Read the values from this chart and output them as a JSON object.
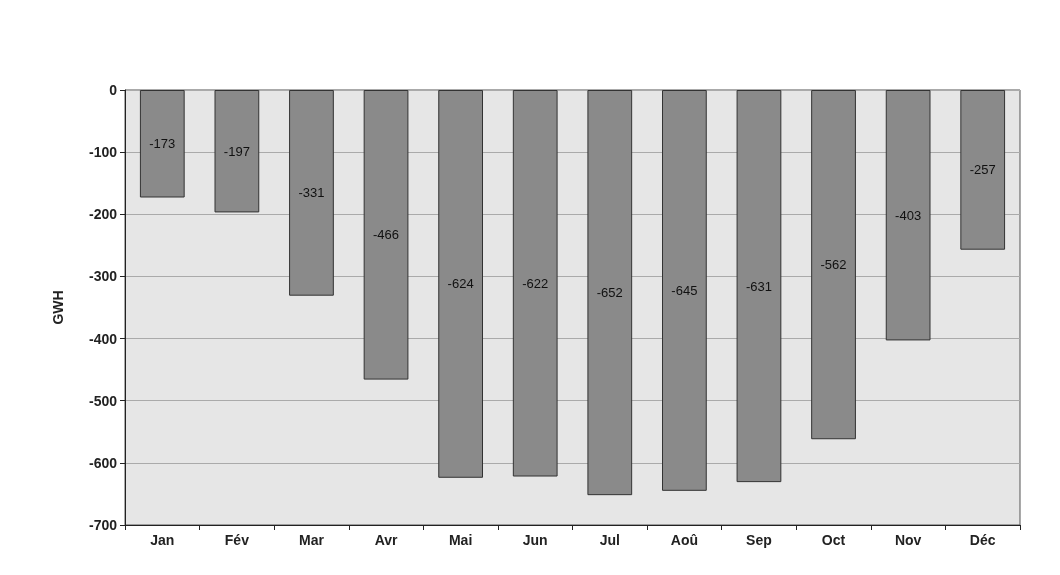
{
  "chart_data": {
    "type": "bar",
    "ylabel": "GWH",
    "categories": [
      "Jan",
      "Fév",
      "Mar",
      "Avr",
      "Mai",
      "Jun",
      "Jul",
      "Aoû",
      "Sep",
      "Oct",
      "Nov",
      "Déc"
    ],
    "values": [
      -173,
      -197,
      -331,
      -466,
      -624,
      -622,
      -652,
      -645,
      -631,
      -562,
      -403,
      -257
    ],
    "color": "#8a8a8a",
    "ylim": [
      -700,
      0
    ],
    "yticks": [
      -700,
      -600,
      -500,
      -400,
      -300,
      -200,
      -100,
      0
    ],
    "grid": "y",
    "data_labels": true
  }
}
